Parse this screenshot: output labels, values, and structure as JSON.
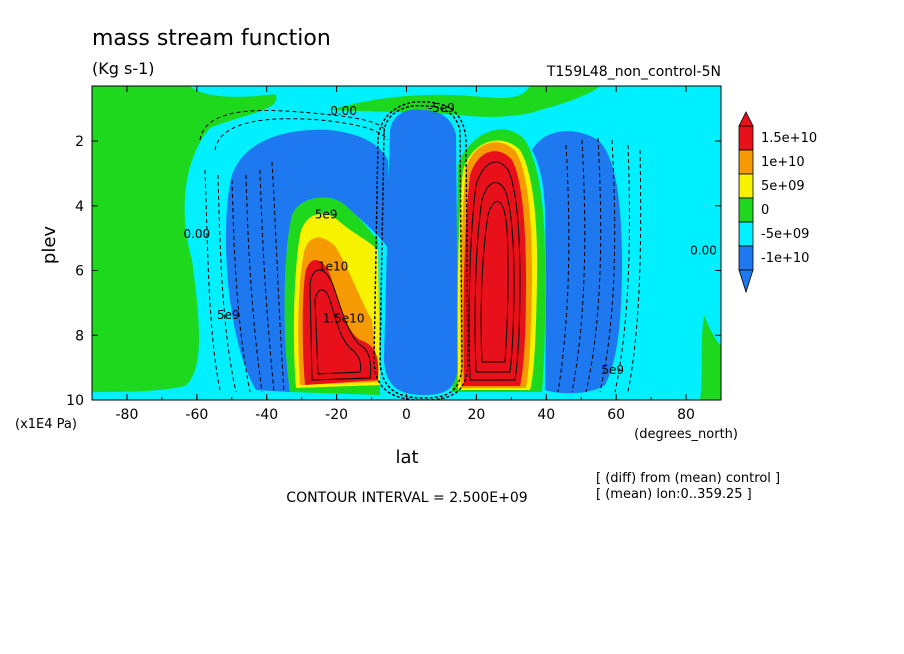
{
  "chart_data": {
    "type": "heatmap",
    "title": "mass stream function",
    "units": "(Kg s-1)",
    "subtitle": "T159L48_non_control-5N",
    "xlabel": "lat",
    "x_units": "(degrees_north)",
    "ylabel": "plev",
    "y_units": "(x1E4 Pa)",
    "xlim": [
      -90,
      90
    ],
    "ylim": [
      10,
      0.3
    ],
    "x_ticks": [
      "-80",
      "-60",
      "-40",
      "-20",
      "0",
      "20",
      "40",
      "60",
      "80"
    ],
    "x_tick_values": [
      -80,
      -60,
      -40,
      -20,
      0,
      20,
      40,
      60,
      80
    ],
    "y_ticks": [
      "2",
      "4",
      "6",
      "8",
      "10"
    ],
    "y_tick_values": [
      2,
      4,
      6,
      8,
      10
    ],
    "contour_interval": "CONTOUR INTERVAL = 2.500E+09",
    "notes": [
      "[ (diff) from (mean) control ]",
      "[ (mean) lon:0..359.25 ]"
    ],
    "colorbar": {
      "labels": [
        "1.5e+10",
        "1e+10",
        "5e+09",
        "0",
        "-5e+09",
        "-1e+10"
      ],
      "colors": [
        "#e8101a",
        "#f59a00",
        "#f7f200",
        "#1ed81e",
        "#00f0ff",
        "#1e78f0"
      ]
    },
    "cells": [
      {
        "lon": -27,
        "lev": 7.2,
        "level": "1.5e+10",
        "sign": "positive"
      },
      {
        "lon": -20,
        "lev": 6.5,
        "level": "1e+10",
        "sign": "positive"
      },
      {
        "lon": 5,
        "lev": 5.5,
        "level": "-1e+10",
        "sign": "negative"
      },
      {
        "lon": 25,
        "lev": 6.0,
        "level": "1.5e+10",
        "sign": "positive"
      },
      {
        "lon": -42,
        "lev": 6.0,
        "level": "-1e+10",
        "sign": "negative"
      },
      {
        "lon": 45,
        "lev": 5.5,
        "level": "-1e+10",
        "sign": "negative"
      }
    ],
    "contour_labels": [
      {
        "text": "0.00",
        "lon": -60,
        "lev": 5.0
      },
      {
        "text": "0.00",
        "lon": 85,
        "lev": 5.5
      },
      {
        "text": "0.00",
        "lon": -18,
        "lev": 1.2
      },
      {
        "text": "5e9",
        "lon": -51,
        "lev": 7.5
      },
      {
        "text": "-5e9",
        "lon": 10,
        "lev": 1.1
      },
      {
        "text": "5e9",
        "lon": -23,
        "lev": 4.4
      },
      {
        "text": "1e10",
        "lon": -21,
        "lev": 6.0
      },
      {
        "text": "1.5e10",
        "lon": -18,
        "lev": 7.6
      },
      {
        "text": "5e9",
        "lon": 59,
        "lev": 9.2
      }
    ]
  }
}
